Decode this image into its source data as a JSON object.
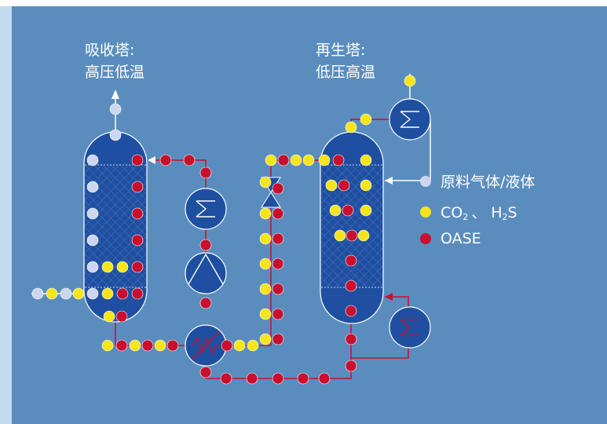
{
  "absorber": {
    "label_line1": "吸收塔:",
    "label_line2": "高压低温"
  },
  "regenerator": {
    "label_line1": "再生塔:",
    "label_line2": "低压高温"
  },
  "legend": {
    "raw_material": "原料气体/液体",
    "co2_prefix": "CO",
    "co2_sub": "2",
    "separator": "、",
    "h2s_prefix": "H",
    "h2s_sub": "2",
    "h2s_suffix": "S",
    "oase": "OASE"
  },
  "colors": {
    "background": "#5a8dbe",
    "left_strip": "#c2d9ef",
    "vessel": "#1f4fa0",
    "raw_material": "#cdd6ef",
    "co2_h2s": "#f6e51a",
    "oase": "#c8102e",
    "pipe_white": "#ffffff",
    "pipe_red": "#c8102e"
  }
}
